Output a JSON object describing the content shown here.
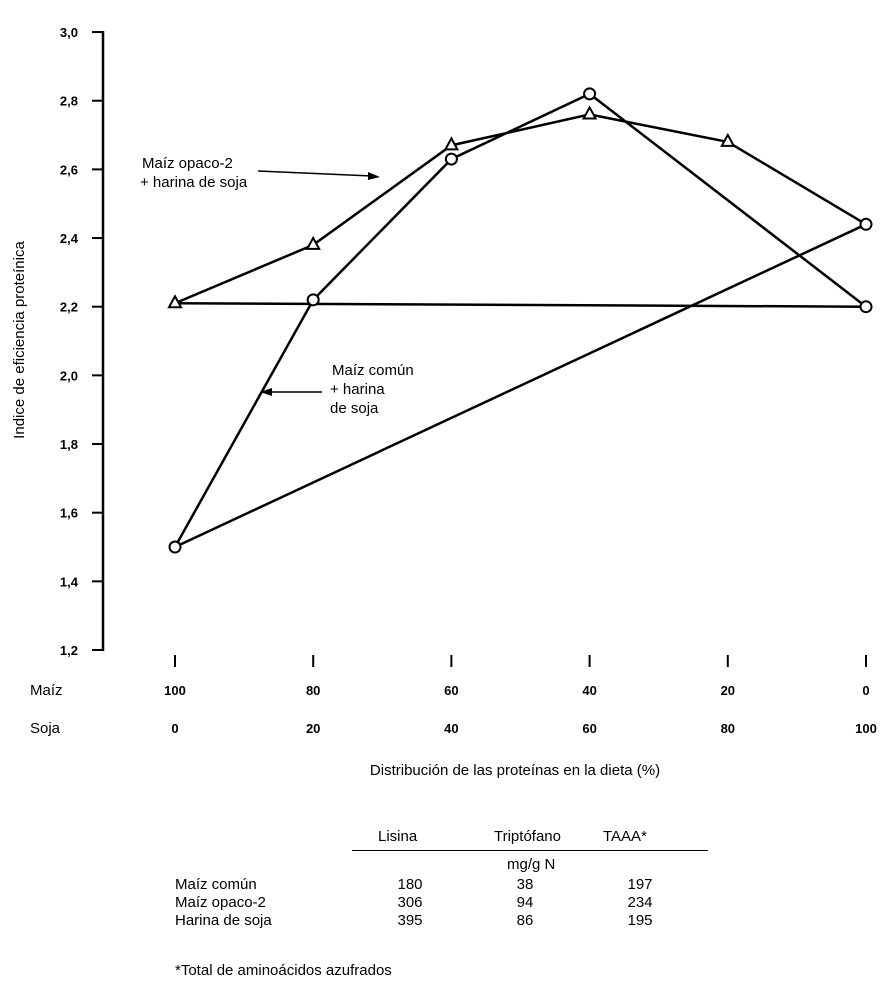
{
  "chart_data": {
    "type": "line",
    "title": "",
    "ylabel": "Indice de eficiencia proteínica",
    "xlabel": "Distribución de las proteínas en la dieta (%)",
    "ylim": [
      1.2,
      3.0
    ],
    "yticks": [
      "3,0",
      "2,8",
      "2,6",
      "2,4",
      "2,2",
      "2,0",
      "1,8",
      "1,6",
      "1,4",
      "1,2"
    ],
    "ytick_values": [
      3.0,
      2.8,
      2.6,
      2.4,
      2.2,
      2.0,
      1.8,
      1.6,
      1.4,
      1.2
    ],
    "x_rows": [
      {
        "label": "Maíz",
        "ticks": [
          "100",
          "80",
          "60",
          "40",
          "20",
          "0"
        ]
      },
      {
        "label": "Soja",
        "ticks": [
          "0",
          "20",
          "40",
          "60",
          "80",
          "100"
        ]
      }
    ],
    "x": [
      100,
      80,
      60,
      40,
      20,
      0
    ],
    "series": [
      {
        "name": "Maíz opaco-2 + harina de soja",
        "marker": "triangle",
        "x": [
          100,
          80,
          60,
          40,
          20,
          0
        ],
        "y": [
          2.21,
          2.38,
          2.67,
          2.76,
          2.68,
          2.44
        ],
        "marker_last": "circle"
      },
      {
        "name": "Maíz común + harina de soja",
        "marker": "circle",
        "x": [
          100,
          80,
          60,
          40,
          0
        ],
        "y": [
          1.5,
          2.22,
          2.63,
          2.82,
          2.2
        ]
      }
    ],
    "reference_lines": [
      {
        "x": [
          100,
          0
        ],
        "y": [
          1.5,
          2.44
        ]
      },
      {
        "x": [
          100,
          0
        ],
        "y": [
          2.21,
          2.2
        ]
      }
    ],
    "annotations": [
      {
        "lines": [
          "Maíz opaco-2",
          "+ harina de soja"
        ]
      },
      {
        "lines": [
          "Maíz común",
          "+ harina",
          "de soja"
        ]
      }
    ],
    "grid": false
  },
  "table": {
    "headers": [
      "Lisina",
      "Triptófano",
      "TAAA*"
    ],
    "unit": "mg/g  N",
    "rows": [
      {
        "label": "Maíz común",
        "values": [
          "180",
          "38",
          "197"
        ]
      },
      {
        "label": "Maíz opaco-2",
        "values": [
          "306",
          "94",
          "234"
        ]
      },
      {
        "label": "Harina de soja",
        "values": [
          "395",
          "86",
          "195"
        ]
      }
    ],
    "footnote": "*Total de aminoácidos azufrados"
  }
}
